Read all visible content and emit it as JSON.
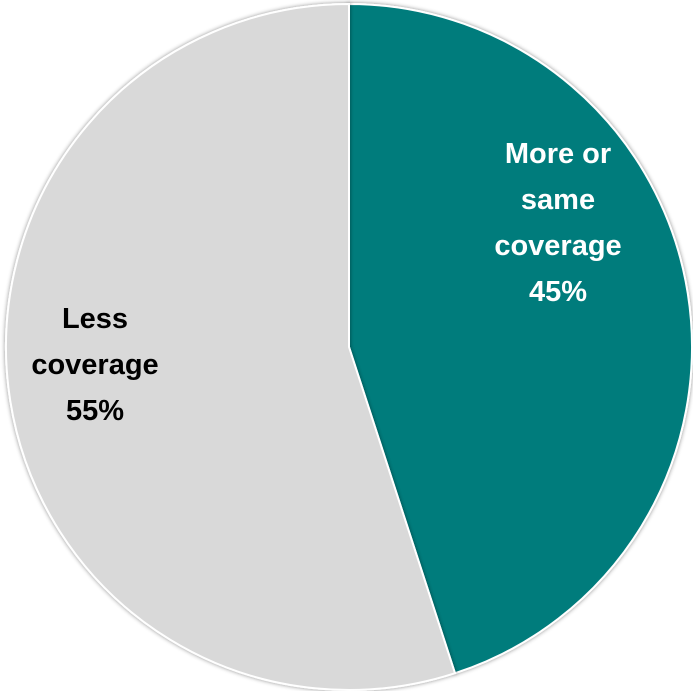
{
  "chart_data": {
    "type": "pie",
    "title": "",
    "start_angle_deg": 0,
    "direction": "clockwise",
    "slices": [
      {
        "label_lines": [
          "More or",
          "same",
          "coverage"
        ],
        "value": 45,
        "value_label": "45%",
        "color": "#007B7B",
        "text_color": "#FFFFFF"
      },
      {
        "label_lines": [
          "Less",
          "coverage"
        ],
        "value": 55,
        "value_label": "55%",
        "color": "#D9D9D9",
        "text_color": "#000000"
      }
    ],
    "legend": "none",
    "border_color": "#FFFFFF"
  }
}
